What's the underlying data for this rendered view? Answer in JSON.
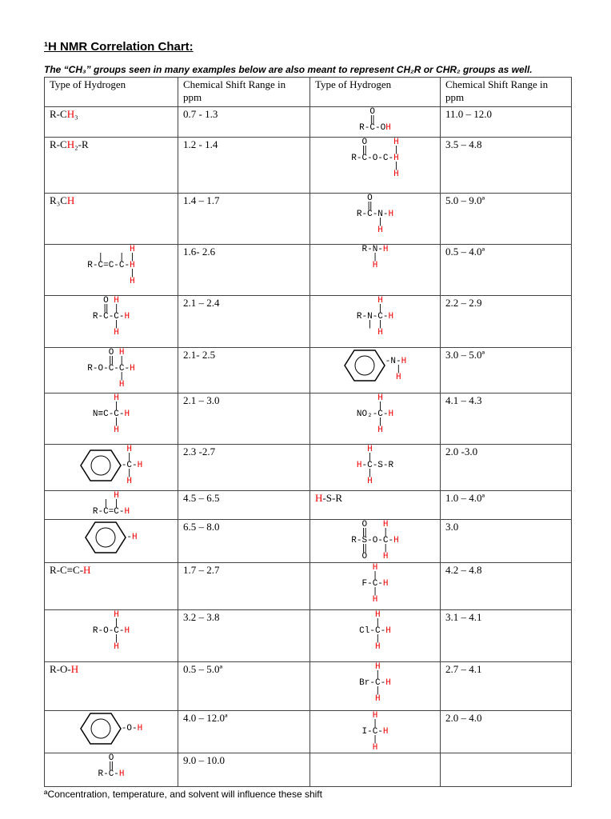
{
  "title": "¹H NMR Correlation Chart:",
  "note": "The “CH₃” groups seen in many examples below are also meant to represent CH₂R or CHR₂ groups as well.",
  "table": {
    "columns": [
      "Type of Hydrogen",
      "Chemical Shift Range in ppm",
      "Type of Hydrogen",
      "Chemical Shift Range in ppm"
    ],
    "rows": [
      {
        "left": {
          "structure": {
            "lines": [
              "R-CH₃"
            ]
          },
          "shift": "0.7 - 1.3"
        },
        "right": {
          "structure": {
            "lines": [
              "  O",
              "  ‖",
              "R-C-OH"
            ]
          },
          "shift": "11.0 – 12.0"
        }
      },
      {
        "left": {
          "structure": {
            "lines": [
              "R-CH₂-R"
            ]
          },
          "shift": "1.2 - 1.4"
        },
        "right": {
          "structure": {
            "lines": [
              "  O     H",
              "  ‖     |",
              "R-C-O-C-H",
              "        |",
              "        H"
            ]
          },
          "shift": "3.5 – 4.8"
        }
      },
      {
        "left": {
          "structure": {
            "lines": [
              "R₃CH"
            ]
          },
          "shift": "1.4 – 1.7"
        },
        "right": {
          "structure": {
            "lines": [
              "  O",
              "  ‖",
              "R-C-N-H",
              "    |",
              "    H"
            ]
          },
          "shift": "5.0 – 9.0ª"
        }
      },
      {
        "left": {
          "structure": {
            "lines": [
              "        H",
              "  |   | |",
              "R-C=C-C-H",
              "        |",
              "        H"
            ]
          },
          "shift": "1.6- 2.6"
        },
        "right": {
          "structure": {
            "lines": [
              "R-N-H",
              "  |",
              "  H"
            ]
          },
          "shift": "0.5 – 4.0ª"
        }
      },
      {
        "left": {
          "structure": {
            "lines": [
              "  O H",
              "  ‖ |",
              "R-C-C-H",
              "    |",
              "    H"
            ]
          },
          "shift": "2.1 – 2.4"
        },
        "right": {
          "structure": {
            "lines": [
              "    H",
              "    |",
              "R-N-C-H",
              "  | |",
              "    H"
            ]
          },
          "shift": "2.2 – 2.9"
        }
      },
      {
        "left": {
          "structure": {
            "lines": [
              "    O H",
              "    ‖ |",
              "R-O-C-C-H",
              "      |",
              "      H"
            ]
          },
          "shift": "2.1- 2.5"
        },
        "right": {
          "structure": {
            "ring": true,
            "lines": [
              "",
              "-N-H",
              "  |",
              "  H"
            ]
          },
          "shift": "3.0 – 5.0ª"
        }
      },
      {
        "left": {
          "structure": {
            "lines": [
              "    H",
              "    |",
              "N≡C-C-H",
              "    |",
              "    H"
            ]
          },
          "shift": "2.1 – 3.0"
        },
        "right": {
          "structure": {
            "lines": [
              "    H",
              "    |",
              "NO₂-C-H",
              "    |",
              "    H"
            ]
          },
          "shift": "4.1 – 4.3"
        }
      },
      {
        "left": {
          "structure": {
            "ring": true,
            "lines": [
              " H",
              " |",
              "-C-H",
              " |",
              " H"
            ]
          },
          "shift": "2.3 -2.7"
        },
        "right": {
          "structure": {
            "lines": [
              "  H",
              "  |",
              "H-C-S-R",
              "  |",
              "  H"
            ]
          },
          "shift": "2.0 -3.0"
        }
      },
      {
        "left": {
          "structure": {
            "lines": [
              "    H",
              "  | |",
              "R-C=C-H"
            ]
          },
          "shift": "4.5 – 6.5"
        },
        "right": {
          "structure": {
            "lines": [
              "H-S-R"
            ]
          },
          "shift": "1.0 – 4.0ª"
        }
      },
      {
        "left": {
          "structure": {
            "ring": true,
            "lines": [
              "-H"
            ]
          },
          "shift": "6.5 – 8.0"
        },
        "right": {
          "structure": {
            "lines": [
              "  O   H",
              "  ‖   |",
              "R-S-O-C-H",
              "  ‖   |",
              "  O   H"
            ]
          },
          "shift": "3.0"
        }
      },
      {
        "left": {
          "structure": {
            "lines": [
              "R-C≡C-H"
            ]
          },
          "shift": "1.7 – 2.7"
        },
        "right": {
          "structure": {
            "lines": [
              "  H",
              "  |",
              "F-C-H",
              "  |",
              "  H"
            ]
          },
          "shift": "4.2 – 4.8"
        }
      },
      {
        "left": {
          "structure": {
            "lines": [
              "    H",
              "    |",
              "R-O-C-H",
              "    |",
              "    H"
            ]
          },
          "shift": "3.2 – 3.8"
        },
        "right": {
          "structure": {
            "lines": [
              "   H",
              "   |",
              "Cl-C-H",
              "   |",
              "   H"
            ]
          },
          "shift": "3.1 – 4.1"
        }
      },
      {
        "left": {
          "structure": {
            "lines": [
              "R-O-H"
            ]
          },
          "shift": "0.5 – 5.0ª"
        },
        "right": {
          "structure": {
            "lines": [
              "   H",
              "   |",
              "Br-C-H",
              "   |",
              "   H"
            ]
          },
          "shift": "2.7 – 4.1"
        }
      },
      {
        "left": {
          "structure": {
            "ring": true,
            "lines": [
              "-O-H"
            ]
          },
          "shift": "4.0 – 12.0ª"
        },
        "right": {
          "structure": {
            "lines": [
              "  H",
              "  |",
              "I-C-H",
              "  |",
              "  H"
            ]
          },
          "shift": "2.0 – 4.0"
        }
      },
      {
        "left": {
          "structure": {
            "lines": [
              "  O",
              "  ‖",
              "R-C-H"
            ]
          },
          "shift": "9.0 – 10.0"
        }
      }
    ]
  },
  "footnote": "ªConcentration, temperature, and solvent will influence these shift"
}
